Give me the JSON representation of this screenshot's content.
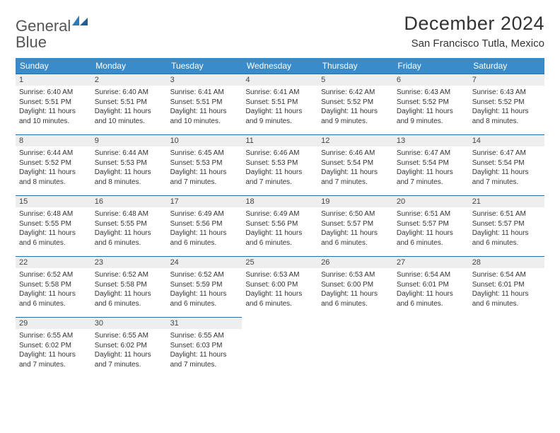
{
  "logo": {
    "text1": "General",
    "text2": "Blue"
  },
  "title": "December 2024",
  "subtitle": "San Francisco Tutla, Mexico",
  "colors": {
    "header_bg": "#3a8bc9",
    "header_text": "#ffffff",
    "daynum_bg": "#eeeeee",
    "border": "#2b6ca3",
    "logo_blue": "#2b7bbd"
  },
  "weekdays": [
    "Sunday",
    "Monday",
    "Tuesday",
    "Wednesday",
    "Thursday",
    "Friday",
    "Saturday"
  ],
  "weeks": [
    [
      {
        "n": "1",
        "sr": "Sunrise: 6:40 AM",
        "ss": "Sunset: 5:51 PM",
        "dl": "Daylight: 11 hours and 10 minutes."
      },
      {
        "n": "2",
        "sr": "Sunrise: 6:40 AM",
        "ss": "Sunset: 5:51 PM",
        "dl": "Daylight: 11 hours and 10 minutes."
      },
      {
        "n": "3",
        "sr": "Sunrise: 6:41 AM",
        "ss": "Sunset: 5:51 PM",
        "dl": "Daylight: 11 hours and 10 minutes."
      },
      {
        "n": "4",
        "sr": "Sunrise: 6:41 AM",
        "ss": "Sunset: 5:51 PM",
        "dl": "Daylight: 11 hours and 9 minutes."
      },
      {
        "n": "5",
        "sr": "Sunrise: 6:42 AM",
        "ss": "Sunset: 5:52 PM",
        "dl": "Daylight: 11 hours and 9 minutes."
      },
      {
        "n": "6",
        "sr": "Sunrise: 6:43 AM",
        "ss": "Sunset: 5:52 PM",
        "dl": "Daylight: 11 hours and 9 minutes."
      },
      {
        "n": "7",
        "sr": "Sunrise: 6:43 AM",
        "ss": "Sunset: 5:52 PM",
        "dl": "Daylight: 11 hours and 8 minutes."
      }
    ],
    [
      {
        "n": "8",
        "sr": "Sunrise: 6:44 AM",
        "ss": "Sunset: 5:52 PM",
        "dl": "Daylight: 11 hours and 8 minutes."
      },
      {
        "n": "9",
        "sr": "Sunrise: 6:44 AM",
        "ss": "Sunset: 5:53 PM",
        "dl": "Daylight: 11 hours and 8 minutes."
      },
      {
        "n": "10",
        "sr": "Sunrise: 6:45 AM",
        "ss": "Sunset: 5:53 PM",
        "dl": "Daylight: 11 hours and 7 minutes."
      },
      {
        "n": "11",
        "sr": "Sunrise: 6:46 AM",
        "ss": "Sunset: 5:53 PM",
        "dl": "Daylight: 11 hours and 7 minutes."
      },
      {
        "n": "12",
        "sr": "Sunrise: 6:46 AM",
        "ss": "Sunset: 5:54 PM",
        "dl": "Daylight: 11 hours and 7 minutes."
      },
      {
        "n": "13",
        "sr": "Sunrise: 6:47 AM",
        "ss": "Sunset: 5:54 PM",
        "dl": "Daylight: 11 hours and 7 minutes."
      },
      {
        "n": "14",
        "sr": "Sunrise: 6:47 AM",
        "ss": "Sunset: 5:54 PM",
        "dl": "Daylight: 11 hours and 7 minutes."
      }
    ],
    [
      {
        "n": "15",
        "sr": "Sunrise: 6:48 AM",
        "ss": "Sunset: 5:55 PM",
        "dl": "Daylight: 11 hours and 6 minutes."
      },
      {
        "n": "16",
        "sr": "Sunrise: 6:48 AM",
        "ss": "Sunset: 5:55 PM",
        "dl": "Daylight: 11 hours and 6 minutes."
      },
      {
        "n": "17",
        "sr": "Sunrise: 6:49 AM",
        "ss": "Sunset: 5:56 PM",
        "dl": "Daylight: 11 hours and 6 minutes."
      },
      {
        "n": "18",
        "sr": "Sunrise: 6:49 AM",
        "ss": "Sunset: 5:56 PM",
        "dl": "Daylight: 11 hours and 6 minutes."
      },
      {
        "n": "19",
        "sr": "Sunrise: 6:50 AM",
        "ss": "Sunset: 5:57 PM",
        "dl": "Daylight: 11 hours and 6 minutes."
      },
      {
        "n": "20",
        "sr": "Sunrise: 6:51 AM",
        "ss": "Sunset: 5:57 PM",
        "dl": "Daylight: 11 hours and 6 minutes."
      },
      {
        "n": "21",
        "sr": "Sunrise: 6:51 AM",
        "ss": "Sunset: 5:57 PM",
        "dl": "Daylight: 11 hours and 6 minutes."
      }
    ],
    [
      {
        "n": "22",
        "sr": "Sunrise: 6:52 AM",
        "ss": "Sunset: 5:58 PM",
        "dl": "Daylight: 11 hours and 6 minutes."
      },
      {
        "n": "23",
        "sr": "Sunrise: 6:52 AM",
        "ss": "Sunset: 5:58 PM",
        "dl": "Daylight: 11 hours and 6 minutes."
      },
      {
        "n": "24",
        "sr": "Sunrise: 6:52 AM",
        "ss": "Sunset: 5:59 PM",
        "dl": "Daylight: 11 hours and 6 minutes."
      },
      {
        "n": "25",
        "sr": "Sunrise: 6:53 AM",
        "ss": "Sunset: 6:00 PM",
        "dl": "Daylight: 11 hours and 6 minutes."
      },
      {
        "n": "26",
        "sr": "Sunrise: 6:53 AM",
        "ss": "Sunset: 6:00 PM",
        "dl": "Daylight: 11 hours and 6 minutes."
      },
      {
        "n": "27",
        "sr": "Sunrise: 6:54 AM",
        "ss": "Sunset: 6:01 PM",
        "dl": "Daylight: 11 hours and 6 minutes."
      },
      {
        "n": "28",
        "sr": "Sunrise: 6:54 AM",
        "ss": "Sunset: 6:01 PM",
        "dl": "Daylight: 11 hours and 6 minutes."
      }
    ],
    [
      {
        "n": "29",
        "sr": "Sunrise: 6:55 AM",
        "ss": "Sunset: 6:02 PM",
        "dl": "Daylight: 11 hours and 7 minutes."
      },
      {
        "n": "30",
        "sr": "Sunrise: 6:55 AM",
        "ss": "Sunset: 6:02 PM",
        "dl": "Daylight: 11 hours and 7 minutes."
      },
      {
        "n": "31",
        "sr": "Sunrise: 6:55 AM",
        "ss": "Sunset: 6:03 PM",
        "dl": "Daylight: 11 hours and 7 minutes."
      },
      null,
      null,
      null,
      null
    ]
  ]
}
